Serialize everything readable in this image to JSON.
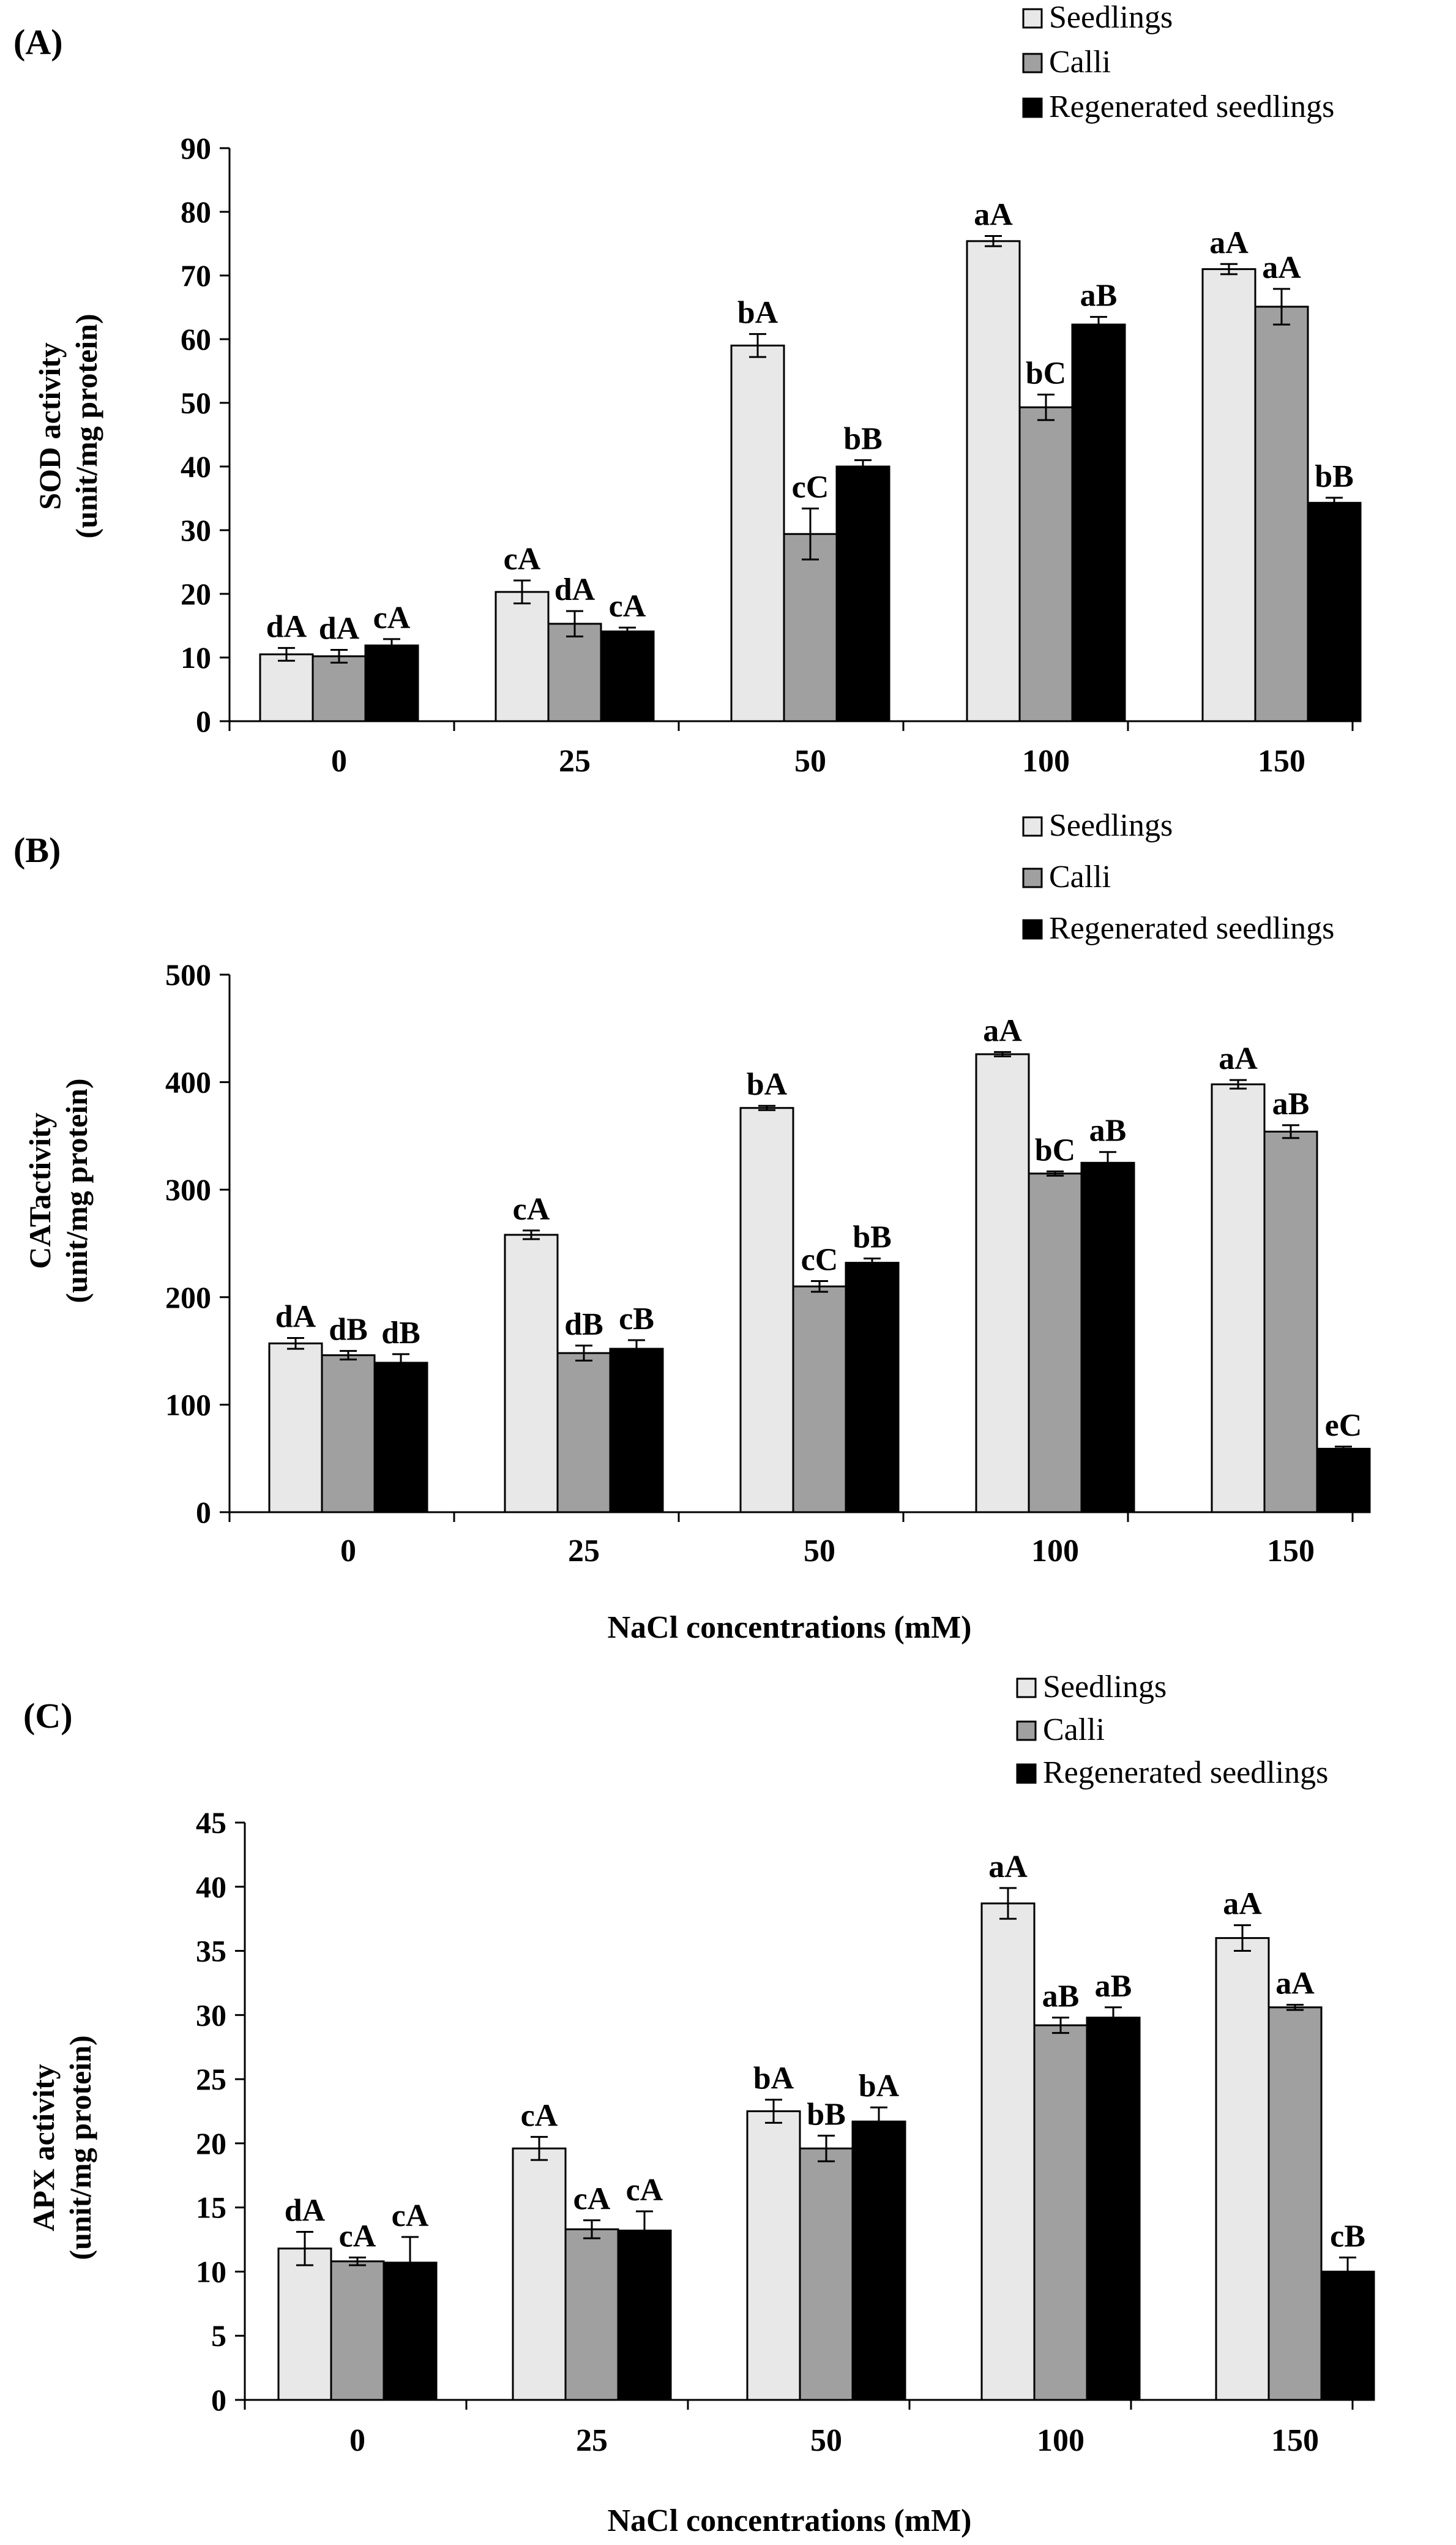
{
  "colors": {
    "seedlings": "#e8e8e8",
    "calli": "#a0a0a0",
    "regenerated": "#000000"
  },
  "chart_data": [
    {
      "type": "bar",
      "panel_label": "(A)",
      "title": "",
      "xlabel": "",
      "ylabel": [
        "SOD activity",
        "(unit/mg protein)"
      ],
      "categories": [
        "0",
        "25",
        "50",
        "100",
        "150"
      ],
      "ylim": [
        0,
        90
      ],
      "yticks": [
        0,
        10,
        20,
        30,
        40,
        50,
        60,
        70,
        80,
        90
      ],
      "grid": false,
      "legend_position": "top-right",
      "series": [
        {
          "name": "Seedlings",
          "color_key": "seedlings",
          "values": [
            10.5,
            20.3,
            59.0,
            75.4,
            71.0
          ],
          "errors": [
            1.0,
            1.8,
            1.8,
            0.8,
            0.8
          ],
          "labels": [
            "dA",
            "cA",
            "bA",
            "aA",
            "aA"
          ]
        },
        {
          "name": "Calli",
          "color_key": "calli",
          "values": [
            10.2,
            15.3,
            29.4,
            49.3,
            65.1
          ],
          "errors": [
            1.0,
            2.0,
            4.0,
            2.0,
            2.8
          ],
          "labels": [
            "dA",
            "dA",
            "cC",
            "bC",
            "aA"
          ]
        },
        {
          "name": "Regenerated seedlings",
          "color_key": "regenerated",
          "values": [
            11.9,
            14.1,
            40.0,
            62.3,
            34.3
          ],
          "errors": [
            1.0,
            0.6,
            1.0,
            1.2,
            0.8
          ],
          "labels": [
            "cA",
            "cA",
            "bB",
            "aB",
            "bB"
          ]
        }
      ]
    },
    {
      "type": "bar",
      "panel_label": "(B)",
      "title": "",
      "xlabel": "NaCl concentrations (mM)",
      "ylabel": [
        "CATactivity",
        "(unit/mg protein)"
      ],
      "categories": [
        "0",
        "25",
        "50",
        "100",
        "150"
      ],
      "ylim": [
        0,
        500
      ],
      "yticks": [
        0,
        100,
        200,
        300,
        400,
        500
      ],
      "grid": false,
      "legend_position": "top-right",
      "series": [
        {
          "name": "Seedlings",
          "color_key": "seedlings",
          "values": [
            157,
            258,
            376,
            426,
            398
          ],
          "errors": [
            5,
            4,
            2,
            2,
            4
          ],
          "labels": [
            "dA",
            "cA",
            "bA",
            "aA",
            "aA"
          ]
        },
        {
          "name": "Calli",
          "color_key": "calli",
          "values": [
            146,
            148,
            210,
            315,
            354
          ],
          "errors": [
            4,
            7,
            5,
            2,
            6
          ],
          "labels": [
            "dB",
            "dB",
            "cC",
            "bC",
            "aB"
          ]
        },
        {
          "name": "Regenerated seedlings",
          "color_key": "regenerated",
          "values": [
            139,
            152,
            232,
            325,
            59
          ],
          "errors": [
            8,
            8,
            4,
            10,
            2
          ],
          "labels": [
            "dB",
            "cB",
            "bB",
            "aB",
            "eC"
          ]
        }
      ]
    },
    {
      "type": "bar",
      "panel_label": "(C)",
      "title": "",
      "xlabel": "NaCl concentrations (mM)",
      "ylabel": [
        "APX activity",
        "(unit/mg protein)"
      ],
      "categories": [
        "0",
        "25",
        "50",
        "100",
        "150"
      ],
      "ylim": [
        0,
        45
      ],
      "yticks": [
        0,
        5,
        10,
        15,
        20,
        25,
        30,
        35,
        40,
        45
      ],
      "grid": false,
      "legend_position": "top-right",
      "series": [
        {
          "name": "Seedlings",
          "color_key": "seedlings",
          "values": [
            11.8,
            19.6,
            22.5,
            38.7,
            36.0
          ],
          "errors": [
            1.3,
            0.9,
            0.9,
            1.2,
            1.0
          ],
          "labels": [
            "dA",
            "cA",
            "bA",
            "aA",
            "aA"
          ]
        },
        {
          "name": "Calli",
          "color_key": "calli",
          "values": [
            10.8,
            13.3,
            19.6,
            29.2,
            30.6
          ],
          "errors": [
            0.3,
            0.7,
            1.0,
            0.6,
            0.2
          ],
          "labels": [
            "cA",
            "cA",
            "bB",
            "aB",
            "aA"
          ]
        },
        {
          "name": "Regenerated seedlings",
          "color_key": "regenerated",
          "values": [
            10.7,
            13.2,
            21.7,
            29.8,
            10.0
          ],
          "errors": [
            2.0,
            1.5,
            1.1,
            0.8,
            1.1
          ],
          "labels": [
            "cA",
            "cA",
            "bA",
            "aB",
            "cB"
          ]
        }
      ]
    }
  ]
}
